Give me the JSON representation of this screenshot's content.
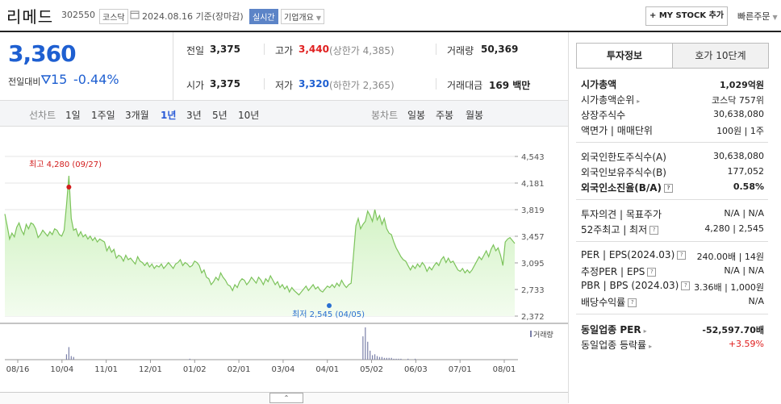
{
  "header": {
    "stock_name": "리메드",
    "stock_code": "302550",
    "market": "코스닥",
    "date_text": "2024.08.16  기준(장마감)",
    "realtime": "실시간",
    "company_overview": "기업개요",
    "mystock_button": "+ MY STOCK 추가",
    "quick_order": "빠른주문"
  },
  "price": {
    "current": "3,360",
    "vs_label": "전일대비",
    "change_amount": "15",
    "change_percent": "-0.44%",
    "change_color": "#1e5fd1"
  },
  "stats": {
    "prev_close_label": "전일",
    "prev_close": "3,375",
    "high_label": "고가",
    "high": "3,440",
    "upper_limit": "(상한가 4,385)",
    "volume_label": "거래량",
    "volume": "50,369",
    "open_label": "시가",
    "open": "3,375",
    "low_label": "저가",
    "low": "3,320",
    "lower_limit": "(하한가 2,365)",
    "amount_label": "거래대금",
    "amount": "169 백만"
  },
  "period_bar": {
    "line_title": "선차트",
    "line_periods": [
      "1일",
      "1주일",
      "3개월",
      "1년",
      "3년",
      "5년",
      "10년"
    ],
    "selected": "1년",
    "candle_title": "봉차트",
    "candle_periods": [
      "일봉",
      "주봉",
      "월봉"
    ]
  },
  "chart_data": {
    "type": "area",
    "y_ticks": [
      "4,543",
      "4,181",
      "3,819",
      "3,457",
      "3,095",
      "2,733",
      "2,372"
    ],
    "ylim": [
      2372,
      4543
    ],
    "x_ticks": [
      "08/16",
      "10/04",
      "11/01",
      "12/01",
      "01/02",
      "02/01",
      "03/04",
      "04/01",
      "05/02",
      "06/03",
      "07/01",
      "08/01"
    ],
    "max_label": "최고 4,280 (09/27)",
    "min_label": "최저 2,545 (04/05)",
    "volume_label": "거래량",
    "max_value": 4280,
    "min_value": 2545,
    "values": [
      3760,
      3600,
      3420,
      3500,
      3450,
      3580,
      3640,
      3540,
      3480,
      3620,
      3560,
      3640,
      3620,
      3560,
      3440,
      3480,
      3540,
      3500,
      3460,
      3520,
      3480,
      3560,
      3540,
      3480,
      3460,
      3540,
      3880,
      4280,
      3700,
      3540,
      3560,
      3460,
      3520,
      3450,
      3480,
      3420,
      3460,
      3400,
      3440,
      3380,
      3420,
      3400,
      3380,
      3260,
      3320,
      3240,
      3280,
      3160,
      3200,
      3180,
      3120,
      3200,
      3140,
      3160,
      3120,
      3080,
      3180,
      3120,
      3100,
      3060,
      3100,
      3040,
      3080,
      3020,
      3060,
      3040,
      3080,
      3020,
      3060,
      3100,
      3060,
      3020,
      3080,
      3100,
      3140,
      3060,
      3100,
      3080,
      3040,
      3060,
      3120,
      3100,
      3060,
      2960,
      3000,
      2900,
      2880,
      2800,
      2840,
      2900,
      2860,
      2960,
      2900,
      2860,
      2800,
      2780,
      2720,
      2800,
      2760,
      2840,
      2880,
      2860,
      2800,
      2840,
      2900,
      2860,
      2820,
      2900,
      2860,
      2800,
      2880,
      2840,
      2920,
      2860,
      2800,
      2840,
      2760,
      2800,
      2740,
      2780,
      2700,
      2760,
      2720,
      2690,
      2660,
      2700,
      2740,
      2780,
      2720,
      2760,
      2800,
      2740,
      2770,
      2720,
      2700,
      2740,
      2780,
      2760,
      2800,
      2760,
      2820,
      2780,
      2860,
      2800,
      2760,
      2800,
      2820,
      3200,
      3600,
      3700,
      3560,
      3620,
      3660,
      3800,
      3740,
      3660,
      3820,
      3680,
      3740,
      3620,
      3700,
      3560,
      3500,
      3480,
      3380,
      3300,
      3240,
      3180,
      3140,
      3120,
      3060,
      3000,
      3060,
      3020,
      3080,
      3040,
      3100,
      3060,
      2980,
      3040,
      3000,
      3060,
      3100,
      3060,
      3140,
      3180,
      3100,
      3160,
      3100,
      3120,
      3060,
      3000,
      2980,
      3020,
      2960,
      3000,
      2960,
      3000,
      3060,
      3120,
      3180,
      3140,
      3200,
      3260,
      3180,
      3280,
      3340,
      3260,
      3300,
      3200,
      3060,
      3380,
      3420,
      3440,
      3400,
      3360
    ],
    "volume_bars": [
      0,
      0,
      0,
      0,
      0,
      0,
      0,
      0,
      0,
      0,
      0,
      0,
      0,
      0,
      0,
      0,
      0,
      0,
      0,
      0,
      0,
      0,
      0,
      0,
      0,
      0,
      6,
      14,
      4,
      3,
      0,
      0,
      0,
      0,
      0,
      0,
      0,
      0,
      0,
      0,
      0,
      0,
      0,
      0,
      0,
      0,
      0,
      0,
      0,
      0,
      0,
      0,
      0,
      0,
      0,
      0,
      0,
      0,
      0,
      0,
      0,
      0,
      0,
      0,
      0,
      0,
      0,
      0,
      0,
      0,
      0,
      0,
      0,
      0,
      0,
      0,
      0,
      0,
      1,
      0,
      0,
      0,
      0,
      0,
      0,
      0,
      0,
      0,
      0,
      0,
      0,
      0,
      0,
      0,
      0,
      0,
      0,
      0,
      0,
      0,
      0,
      0,
      0,
      0,
      0,
      0,
      0,
      0,
      0,
      0,
      0,
      0,
      0,
      0,
      0,
      0,
      0,
      0,
      0,
      0,
      0,
      0,
      0,
      0,
      0,
      0,
      0,
      0,
      0,
      0,
      0,
      0,
      0,
      0,
      0,
      0,
      0,
      0,
      0,
      0,
      0,
      0,
      0,
      0,
      0,
      0,
      0,
      0,
      0,
      0,
      0,
      26,
      36,
      20,
      10,
      5,
      6,
      4,
      3,
      3,
      2,
      2,
      2,
      2,
      1,
      1,
      1,
      1,
      0,
      0,
      1,
      0,
      0,
      1,
      0,
      0,
      0,
      0,
      0,
      0,
      0,
      0,
      0,
      0,
      0,
      0,
      0,
      0,
      0,
      0,
      0,
      0,
      0,
      0,
      0,
      0,
      0,
      0,
      0,
      0,
      0,
      0,
      0,
      0,
      0,
      0,
      0,
      0,
      0,
      0,
      0,
      0,
      0,
      0,
      0,
      0
    ]
  },
  "right_panel": {
    "tab_invest": "투자정보",
    "tab_hoga": "호가 10단계",
    "rows1": [
      {
        "label": "시가총액",
        "value": "1,029억원",
        "bold": true
      },
      {
        "label": "시가총액순위",
        "value": "코스닥 757위"
      },
      {
        "label": "상장주식수",
        "value": "30,638,080"
      },
      {
        "label": "액면가 | 매매단위",
        "value": "100원 | 1주"
      }
    ],
    "rows2": [
      {
        "label": "외국인한도주식수(A)",
        "value": "30,638,080"
      },
      {
        "label": "외국인보유주식수(B)",
        "value": "177,052"
      },
      {
        "label": "외국인소진율(B/A)",
        "value": "0.58%",
        "bold": true
      }
    ],
    "rows3": [
      {
        "label": "투자의견 | 목표주가",
        "value": "N/A | N/A"
      },
      {
        "label": "52주최고 | 최저",
        "value": "4,280 | 2,545"
      }
    ],
    "rows4": [
      {
        "label": "PER | EPS(2024.03)",
        "value": "240.00배 | 14원"
      },
      {
        "label": "추정PER | EPS",
        "value": "N/A | N/A"
      },
      {
        "label": "PBR | BPS (2024.03)",
        "value": "3.36배 | 1,000원"
      },
      {
        "label": "배당수익률",
        "value": "N/A"
      }
    ],
    "rows5": [
      {
        "label": "동일업종 PER",
        "value": "-52,597.70배",
        "bold": true
      },
      {
        "label": "동일업종 등락률",
        "value": "+3.59%",
        "red": true
      }
    ]
  }
}
